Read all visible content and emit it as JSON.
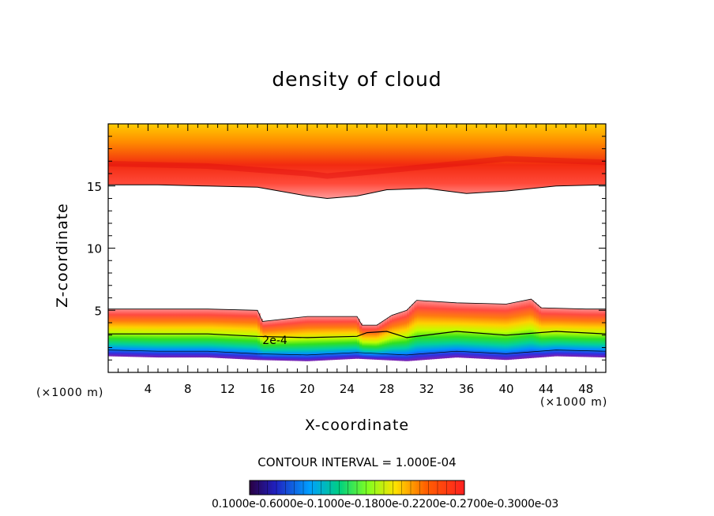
{
  "chart_data": {
    "type": "heatmap",
    "title": "density of cloud",
    "xlabel": "X-coordinate",
    "ylabel": "Z-coordinate",
    "x_unit_left": "(×1000 m)",
    "x_unit_right": "(×1000 m)",
    "xlim": [
      0,
      50
    ],
    "ylim": [
      0,
      20
    ],
    "x_ticks": [
      4,
      8,
      12,
      16,
      20,
      24,
      28,
      32,
      36,
      40,
      44,
      48
    ],
    "y_ticks": [
      5,
      10,
      15
    ],
    "contour_label": "2e-4",
    "contour_label_pos": [
      15.5,
      2.6
    ],
    "contour_interval_text": "CONTOUR INTERVAL = 1.000E-04",
    "colorbar_ticks_text": "0.1000e-0.6000e-0.1000e-0.1800e-0.2200e-0.2700e-0.3000e-03",
    "upper_layer_bottom": [
      [
        0,
        15.1
      ],
      [
        5,
        15.1
      ],
      [
        10,
        15.0
      ],
      [
        15,
        14.9
      ],
      [
        20,
        14.2
      ],
      [
        22,
        14.0
      ],
      [
        25,
        14.2
      ],
      [
        28,
        14.7
      ],
      [
        32,
        14.8
      ],
      [
        36,
        14.4
      ],
      [
        40,
        14.6
      ],
      [
        45,
        15.0
      ],
      [
        50,
        15.1
      ]
    ],
    "upper_layer_peak": [
      [
        0,
        16.8
      ],
      [
        10,
        16.6
      ],
      [
        20,
        16.0
      ],
      [
        22,
        15.8
      ],
      [
        30,
        16.4
      ],
      [
        40,
        17.2
      ],
      [
        50,
        16.9
      ]
    ],
    "lower_layer_top": [
      [
        0,
        5.1
      ],
      [
        5,
        5.1
      ],
      [
        10,
        5.1
      ],
      [
        15,
        5.0
      ],
      [
        15.5,
        4.1
      ],
      [
        20,
        4.5
      ],
      [
        25,
        4.5
      ],
      [
        25.5,
        3.8
      ],
      [
        27,
        3.8
      ],
      [
        28.5,
        4.6
      ],
      [
        30,
        5.0
      ],
      [
        31,
        5.8
      ],
      [
        35,
        5.6
      ],
      [
        40,
        5.5
      ],
      [
        42.5,
        5.9
      ],
      [
        43.5,
        5.2
      ],
      [
        48,
        5.1
      ],
      [
        50,
        5.1
      ]
    ],
    "contour_2e4": [
      [
        0,
        3.1
      ],
      [
        5,
        3.1
      ],
      [
        10,
        3.1
      ],
      [
        15,
        2.9
      ],
      [
        20,
        2.8
      ],
      [
        25,
        2.9
      ],
      [
        26,
        3.2
      ],
      [
        28,
        3.3
      ],
      [
        30,
        2.8
      ],
      [
        35,
        3.3
      ],
      [
        40,
        3.0
      ],
      [
        45,
        3.3
      ],
      [
        50,
        3.1
      ]
    ],
    "lower_layer_bottom": [
      [
        0,
        1.3
      ],
      [
        5,
        1.2
      ],
      [
        10,
        1.2
      ],
      [
        15,
        1.0
      ],
      [
        20,
        0.9
      ],
      [
        25,
        1.1
      ],
      [
        30,
        0.9
      ],
      [
        35,
        1.2
      ],
      [
        40,
        1.0
      ],
      [
        45,
        1.3
      ],
      [
        50,
        1.2
      ]
    ]
  }
}
